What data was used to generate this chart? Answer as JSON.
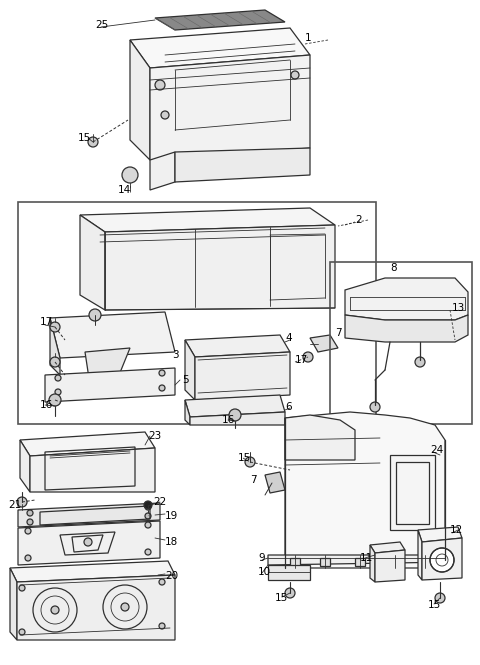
{
  "bg_color": "#ffffff",
  "line_color": "#303030",
  "fig_width": 4.8,
  "fig_height": 6.65,
  "dpi": 100
}
